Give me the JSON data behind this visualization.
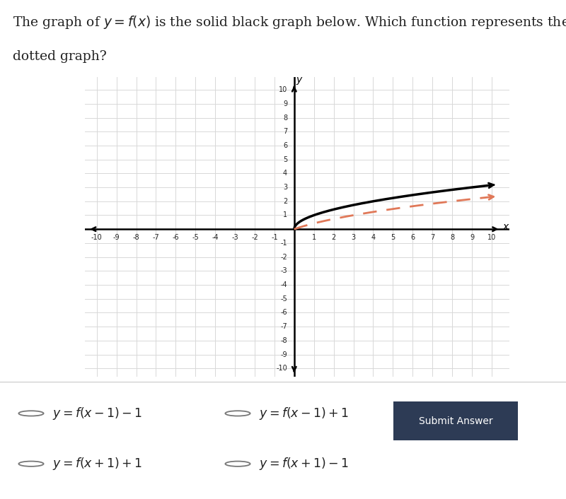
{
  "xmin": -10,
  "xmax": 10,
  "ymin": -10,
  "ymax": 10,
  "xlabel": "x",
  "ylabel": "y",
  "grid_color": "#d8d8d8",
  "axis_color": "#000000",
  "solid_color": "#000000",
  "dotted_color": "#e07858",
  "background_color": "#ffffff",
  "graph_bg_color": "#ffffff",
  "answer_options_math": [
    "y = f(x - 1) - 1",
    "y = f(x - 1) + 1",
    "y = f(x + 1) + 1",
    "y = f(x + 1) - 1"
  ],
  "submit_button_text": "Submit Answer",
  "submit_button_color": "#2d3b55",
  "panel_background": "#f7f7f7",
  "title_line1": "The graph of $y = f(x)$ is the solid black graph below. Which function represents the",
  "title_line2": "dotted graph?",
  "title_color": "#222222",
  "title_fontsize": 13.5
}
